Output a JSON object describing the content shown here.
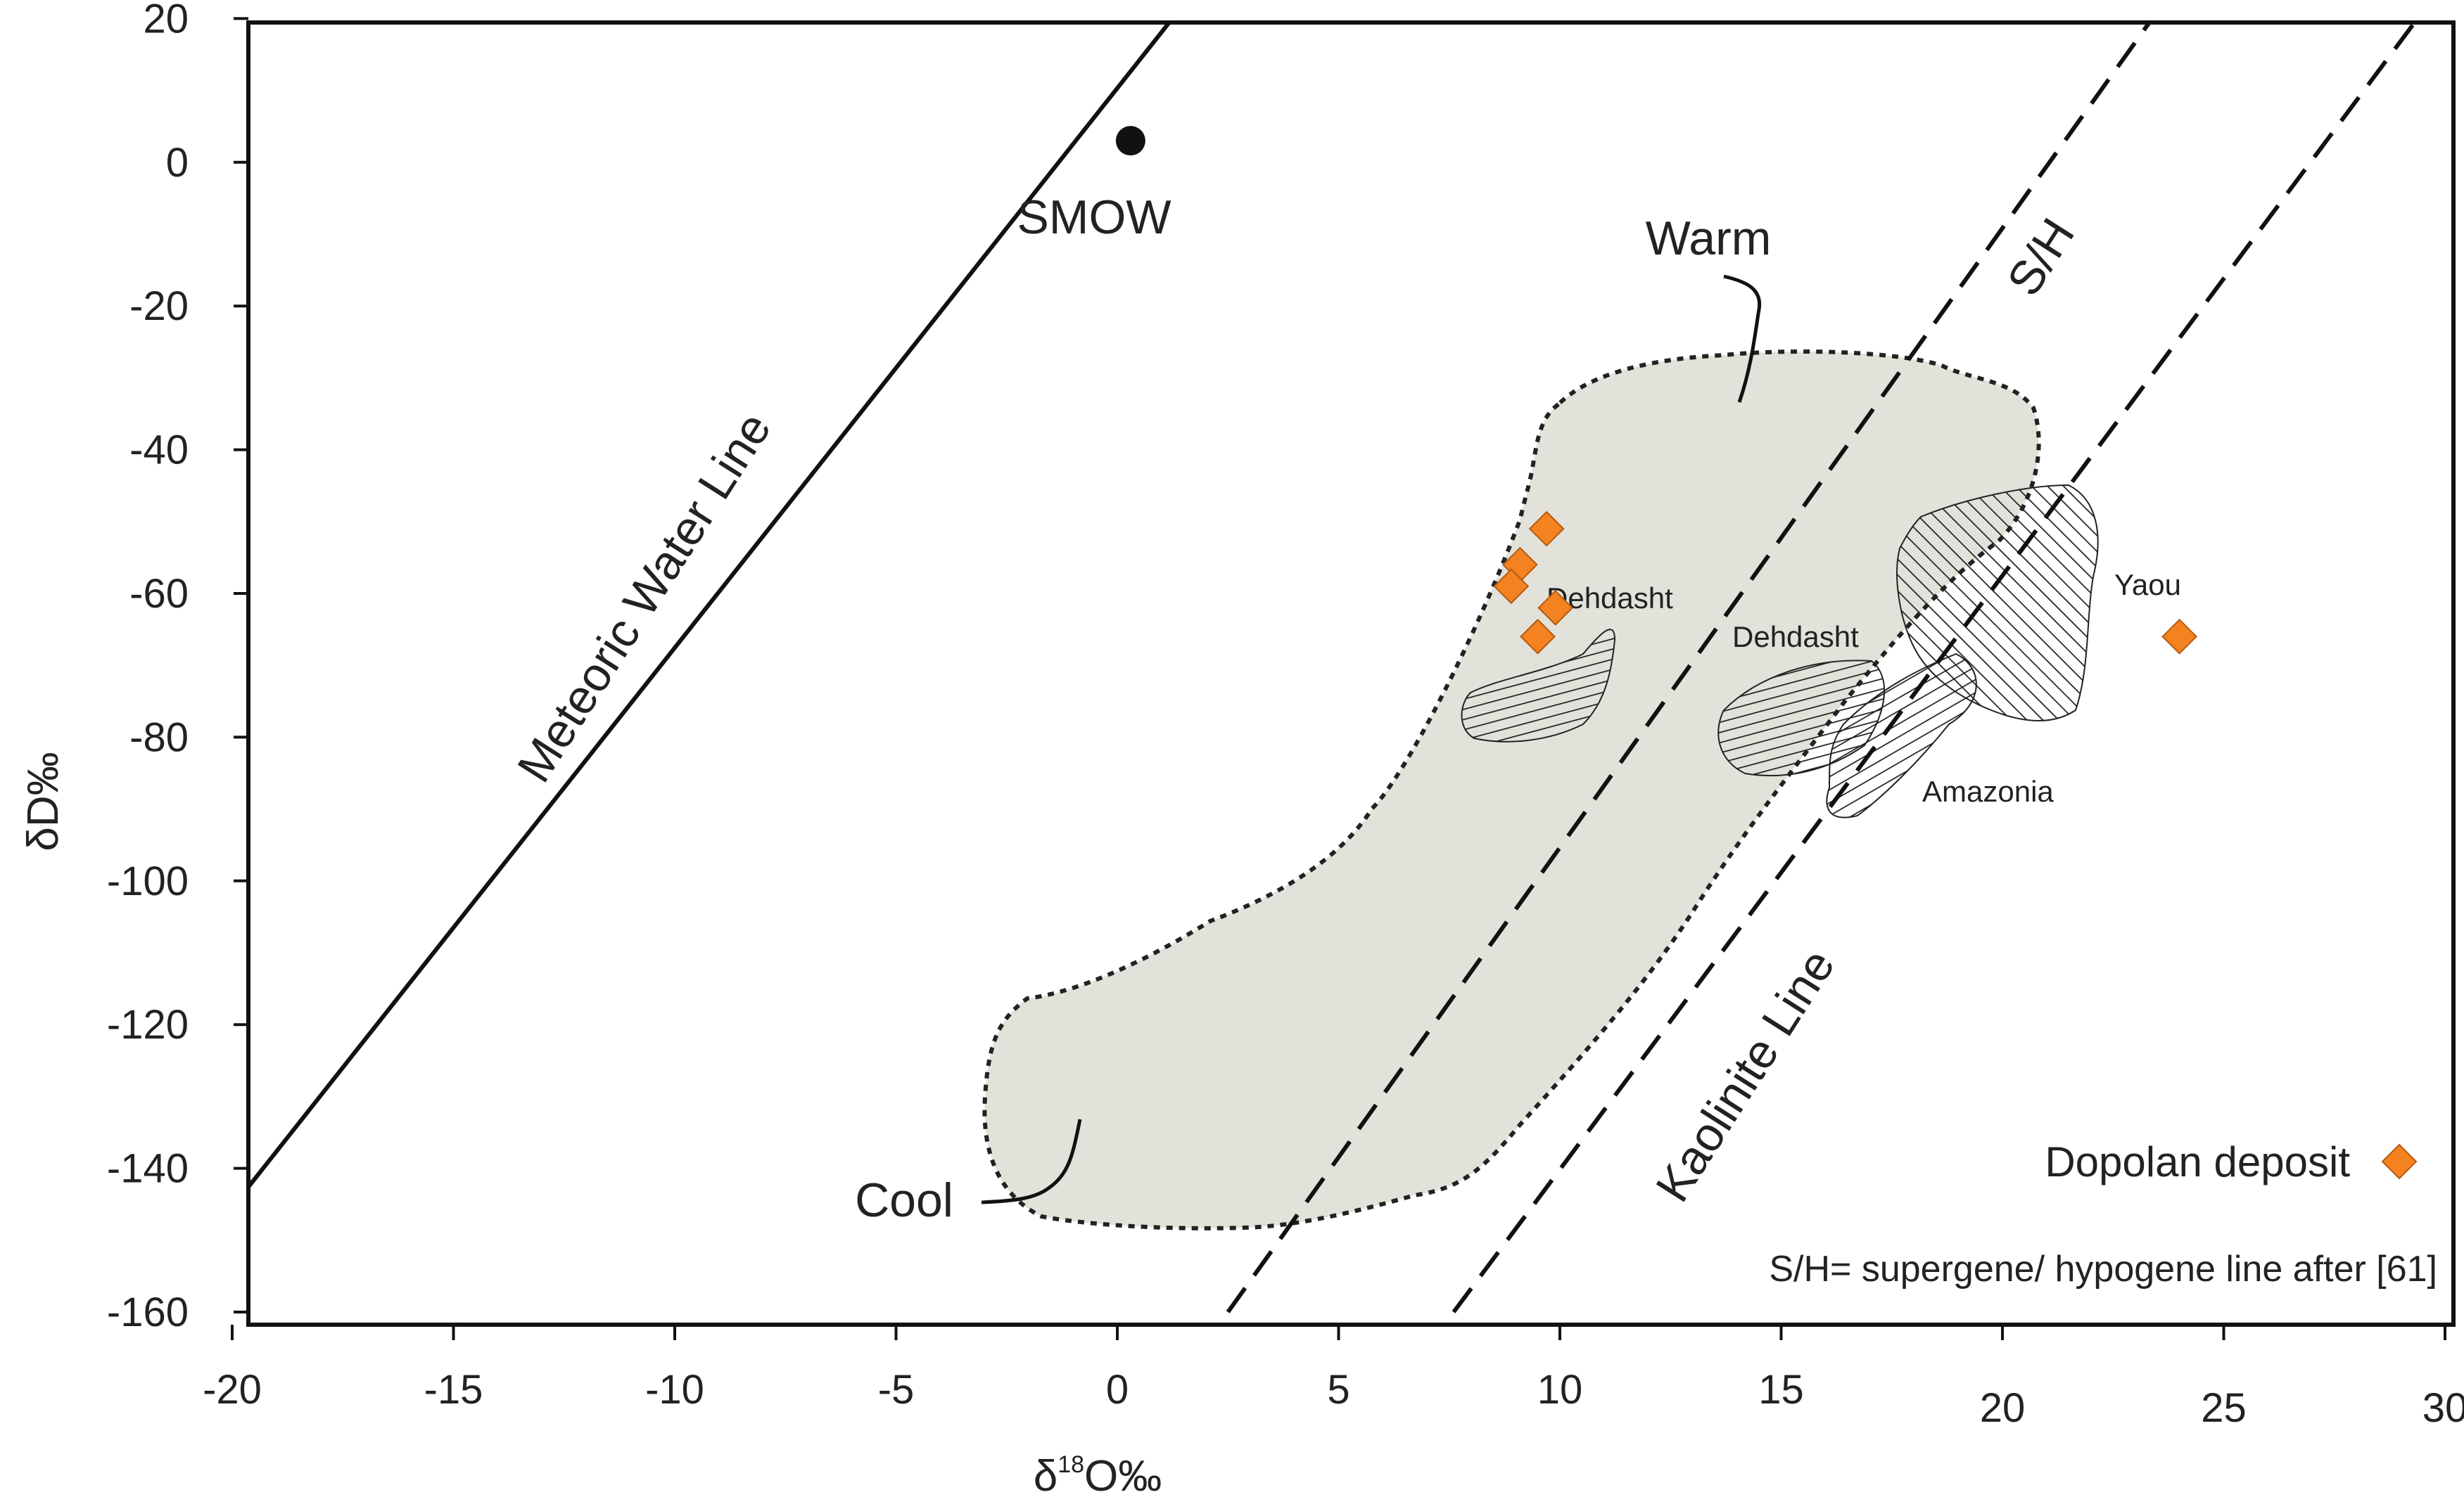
{
  "chart_data": {
    "type": "scatter",
    "title": "",
    "xlabel": {
      "prefix": "δ",
      "sup": "18",
      "suffix": "O‰"
    },
    "ylabel": "δD‰",
    "xlim": [
      -20,
      30
    ],
    "ylim": [
      -160,
      20
    ],
    "xticks": [
      "-20",
      "-15",
      "-10",
      "-5",
      "0",
      "5",
      "10",
      "15",
      "20",
      "25",
      "30"
    ],
    "yticks": [
      "20",
      "0",
      "-20",
      "-40",
      "-60",
      "-80",
      "-100",
      "-120",
      "-140",
      "-160"
    ],
    "grid": false,
    "legend": {
      "position": "bottom-right",
      "label": "Dopolan deposit",
      "color": "#f58220",
      "marker": "diamond"
    },
    "note": "S/H= supergene/ hypogene line after [61]",
    "smow": {
      "label": "SMOW",
      "x": 0.3,
      "y": 3
    },
    "lines": [
      {
        "label": "Meteoric Water Line",
        "style": "solid",
        "from": [
          -20.2,
          -147
        ],
        "to": [
          1.5,
          22
        ]
      },
      {
        "label": "S/H",
        "style": "dashed",
        "from": [
          2.5,
          -160
        ],
        "to": [
          23.5,
          21
        ]
      },
      {
        "label": "Kaolinite Line",
        "style": "dashed",
        "from": [
          7.6,
          -160
        ],
        "to": [
          29.5,
          21
        ]
      }
    ],
    "region_labels": [
      "Warm",
      "Cool",
      "Dehdasht",
      "Dehdasht",
      "Yaou",
      "Amazonia"
    ],
    "points": [
      {
        "x": 9.7,
        "y": -51
      },
      {
        "x": 9.1,
        "y": -56
      },
      {
        "x": 8.9,
        "y": -59
      },
      {
        "x": 9.9,
        "y": -62
      },
      {
        "x": 9.5,
        "y": -66
      },
      {
        "x": 24.0,
        "y": -66
      }
    ]
  }
}
